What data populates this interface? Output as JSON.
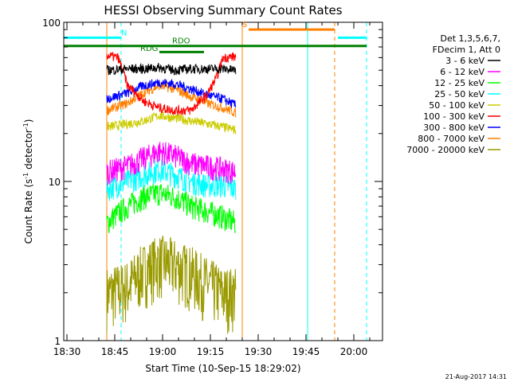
{
  "chart_data": {
    "type": "line",
    "title": "HESSI Observing Summary Count Rates",
    "xlabel": "Start Time (10-Sep-15 18:29:02)",
    "ylabel": "Count Rate (s",
    "ylabel_sup": "-1",
    "ylabel_end": " detector",
    "ylabel_close": ")",
    "footer": "21-Aug-2017 14:31",
    "x_unit": "minutes after 18:29:02 UT",
    "xlim": [
      0,
      100
    ],
    "ylim": [
      1,
      100
    ],
    "y_scale": "log",
    "x_ticks": [
      {
        "t": 1,
        "label": "18:30"
      },
      {
        "t": 16,
        "label": "18:45"
      },
      {
        "t": 31,
        "label": "19:00"
      },
      {
        "t": 46,
        "label": "19:15"
      },
      {
        "t": 61,
        "label": "19:30"
      },
      {
        "t": 76,
        "label": "19:45"
      },
      {
        "t": 91,
        "label": "20:00"
      }
    ],
    "y_ticks": [
      {
        "v": 1,
        "label": "1"
      },
      {
        "v": 10,
        "label": "10"
      },
      {
        "v": 100,
        "label": "100"
      }
    ],
    "legend_header": [
      "Det 1,3,5,6,7,",
      "FDecim 1, Att 0"
    ],
    "series": [
      {
        "name": "3 - 6 keV",
        "color": "#000000",
        "values": [
          [
            13.5,
            50
          ],
          [
            20,
            51
          ],
          [
            25,
            51
          ],
          [
            30,
            52
          ],
          [
            35,
            50
          ],
          [
            40,
            51
          ],
          [
            45,
            51
          ],
          [
            50,
            51
          ],
          [
            54,
            50
          ]
        ]
      },
      {
        "name": "6 - 12 keV",
        "color": "#ff00ff",
        "values": [
          [
            13.5,
            11.5
          ],
          [
            20,
            12.5
          ],
          [
            25,
            14
          ],
          [
            30,
            15.5
          ],
          [
            35,
            14.5
          ],
          [
            40,
            13
          ],
          [
            45,
            12.5
          ],
          [
            50,
            12
          ],
          [
            54,
            11.5
          ]
        ]
      },
      {
        "name": "12 - 25 keV",
        "color": "#00ff00",
        "values": [
          [
            13.5,
            5.5
          ],
          [
            20,
            7
          ],
          [
            25,
            8
          ],
          [
            30,
            8.5
          ],
          [
            35,
            8
          ],
          [
            40,
            7
          ],
          [
            45,
            6.5
          ],
          [
            50,
            6
          ],
          [
            54,
            5.5
          ]
        ]
      },
      {
        "name": "25 - 50 keV",
        "color": "#00ffff",
        "values": [
          [
            13.5,
            9
          ],
          [
            20,
            10
          ],
          [
            25,
            11
          ],
          [
            30,
            12
          ],
          [
            35,
            11
          ],
          [
            40,
            10
          ],
          [
            45,
            9.5
          ],
          [
            50,
            9.5
          ],
          [
            54,
            9
          ]
        ]
      },
      {
        "name": "50 - 100 keV",
        "color": "#cccc00",
        "values": [
          [
            13.5,
            22
          ],
          [
            20,
            23
          ],
          [
            25,
            24
          ],
          [
            30,
            26
          ],
          [
            35,
            25
          ],
          [
            40,
            24
          ],
          [
            45,
            23
          ],
          [
            50,
            22
          ],
          [
            54,
            21
          ]
        ]
      },
      {
        "name": "100 - 300 keV",
        "color": "#ff0000",
        "values": [
          [
            13.5,
            62
          ],
          [
            17,
            60
          ],
          [
            20,
            40
          ],
          [
            25,
            32
          ],
          [
            30,
            29
          ],
          [
            35,
            28
          ],
          [
            40,
            28
          ],
          [
            45,
            35
          ],
          [
            48,
            45
          ],
          [
            50,
            60
          ],
          [
            54,
            61
          ]
        ]
      },
      {
        "name": "300 - 800 keV",
        "color": "#0000ff",
        "values": [
          [
            13.5,
            33
          ],
          [
            20,
            36
          ],
          [
            25,
            40
          ],
          [
            30,
            42
          ],
          [
            35,
            41
          ],
          [
            40,
            38
          ],
          [
            45,
            35
          ],
          [
            50,
            33
          ],
          [
            54,
            30
          ]
        ]
      },
      {
        "name": "800 - 7000 keV",
        "color": "#ff8000",
        "values": [
          [
            13.5,
            28
          ],
          [
            20,
            31
          ],
          [
            25,
            36
          ],
          [
            30,
            40
          ],
          [
            35,
            38
          ],
          [
            40,
            34
          ],
          [
            45,
            31
          ],
          [
            50,
            29
          ],
          [
            54,
            27
          ]
        ]
      },
      {
        "name": "7000 - 20000 keV",
        "color": "#999900",
        "values": [
          [
            13.5,
            2
          ],
          [
            20,
            2.2
          ],
          [
            25,
            2.8
          ],
          [
            30,
            3.2
          ],
          [
            35,
            3
          ],
          [
            40,
            2.7
          ],
          [
            45,
            2.3
          ],
          [
            50,
            2
          ],
          [
            54,
            2
          ]
        ]
      }
    ],
    "annotations": [
      {
        "label": "N",
        "color": "#00ffff",
        "t": 18,
        "y": 80
      },
      {
        "label": "S",
        "color": "#ff8000",
        "t": 56,
        "y": 90
      },
      {
        "label": "RDO",
        "color": "#008000",
        "t": 34,
        "y": 71
      },
      {
        "label": "RDG",
        "color": "#008000",
        "t": 24,
        "y": 64
      }
    ],
    "orbit_bars": [
      {
        "color": "#00ffff",
        "y": 80,
        "from": 0,
        "to": 18
      },
      {
        "color": "#00ffff",
        "y": 80,
        "from": 86,
        "to": 95
      },
      {
        "color": "#ff8000",
        "y": 90,
        "from": 58,
        "to": 85
      },
      {
        "color": "#008000",
        "y": 71,
        "from": 0,
        "to": 95
      },
      {
        "color": "#008000",
        "y": 65,
        "from": 30,
        "to": 44
      }
    ],
    "vertical_lines": [
      {
        "t": 0,
        "color": "#00ffff",
        "dash": false
      },
      {
        "t": 18,
        "color": "#00ffff",
        "dash": true
      },
      {
        "t": 13.5,
        "color": "#ff8000",
        "dash": false
      },
      {
        "t": 56,
        "color": "#ff8000",
        "dash": false
      },
      {
        "t": 76.5,
        "color": "#00ffff",
        "dash": false
      },
      {
        "t": 85,
        "color": "#ff8000",
        "dash": true
      },
      {
        "t": 95,
        "color": "#00ffff",
        "dash": true
      }
    ],
    "grid": false,
    "legend_position": "top-right"
  }
}
